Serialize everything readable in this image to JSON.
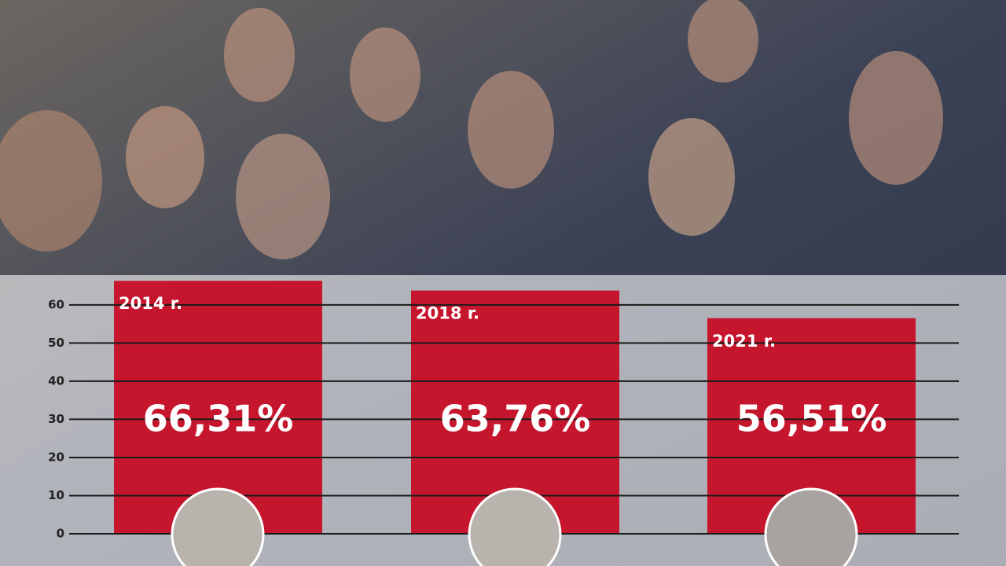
{
  "chart_data": {
    "type": "bar",
    "categories": [
      "2014 r.",
      "2018 r.",
      "2021 r."
    ],
    "values": [
      66.31,
      63.76,
      56.51
    ],
    "value_labels": [
      "66,31%",
      "63,76%",
      "56,51%"
    ],
    "color": "#c8001a",
    "ylim": [
      0,
      68
    ],
    "yticks": [
      0,
      10,
      20,
      30,
      40,
      50,
      60
    ],
    "grid": true
  }
}
